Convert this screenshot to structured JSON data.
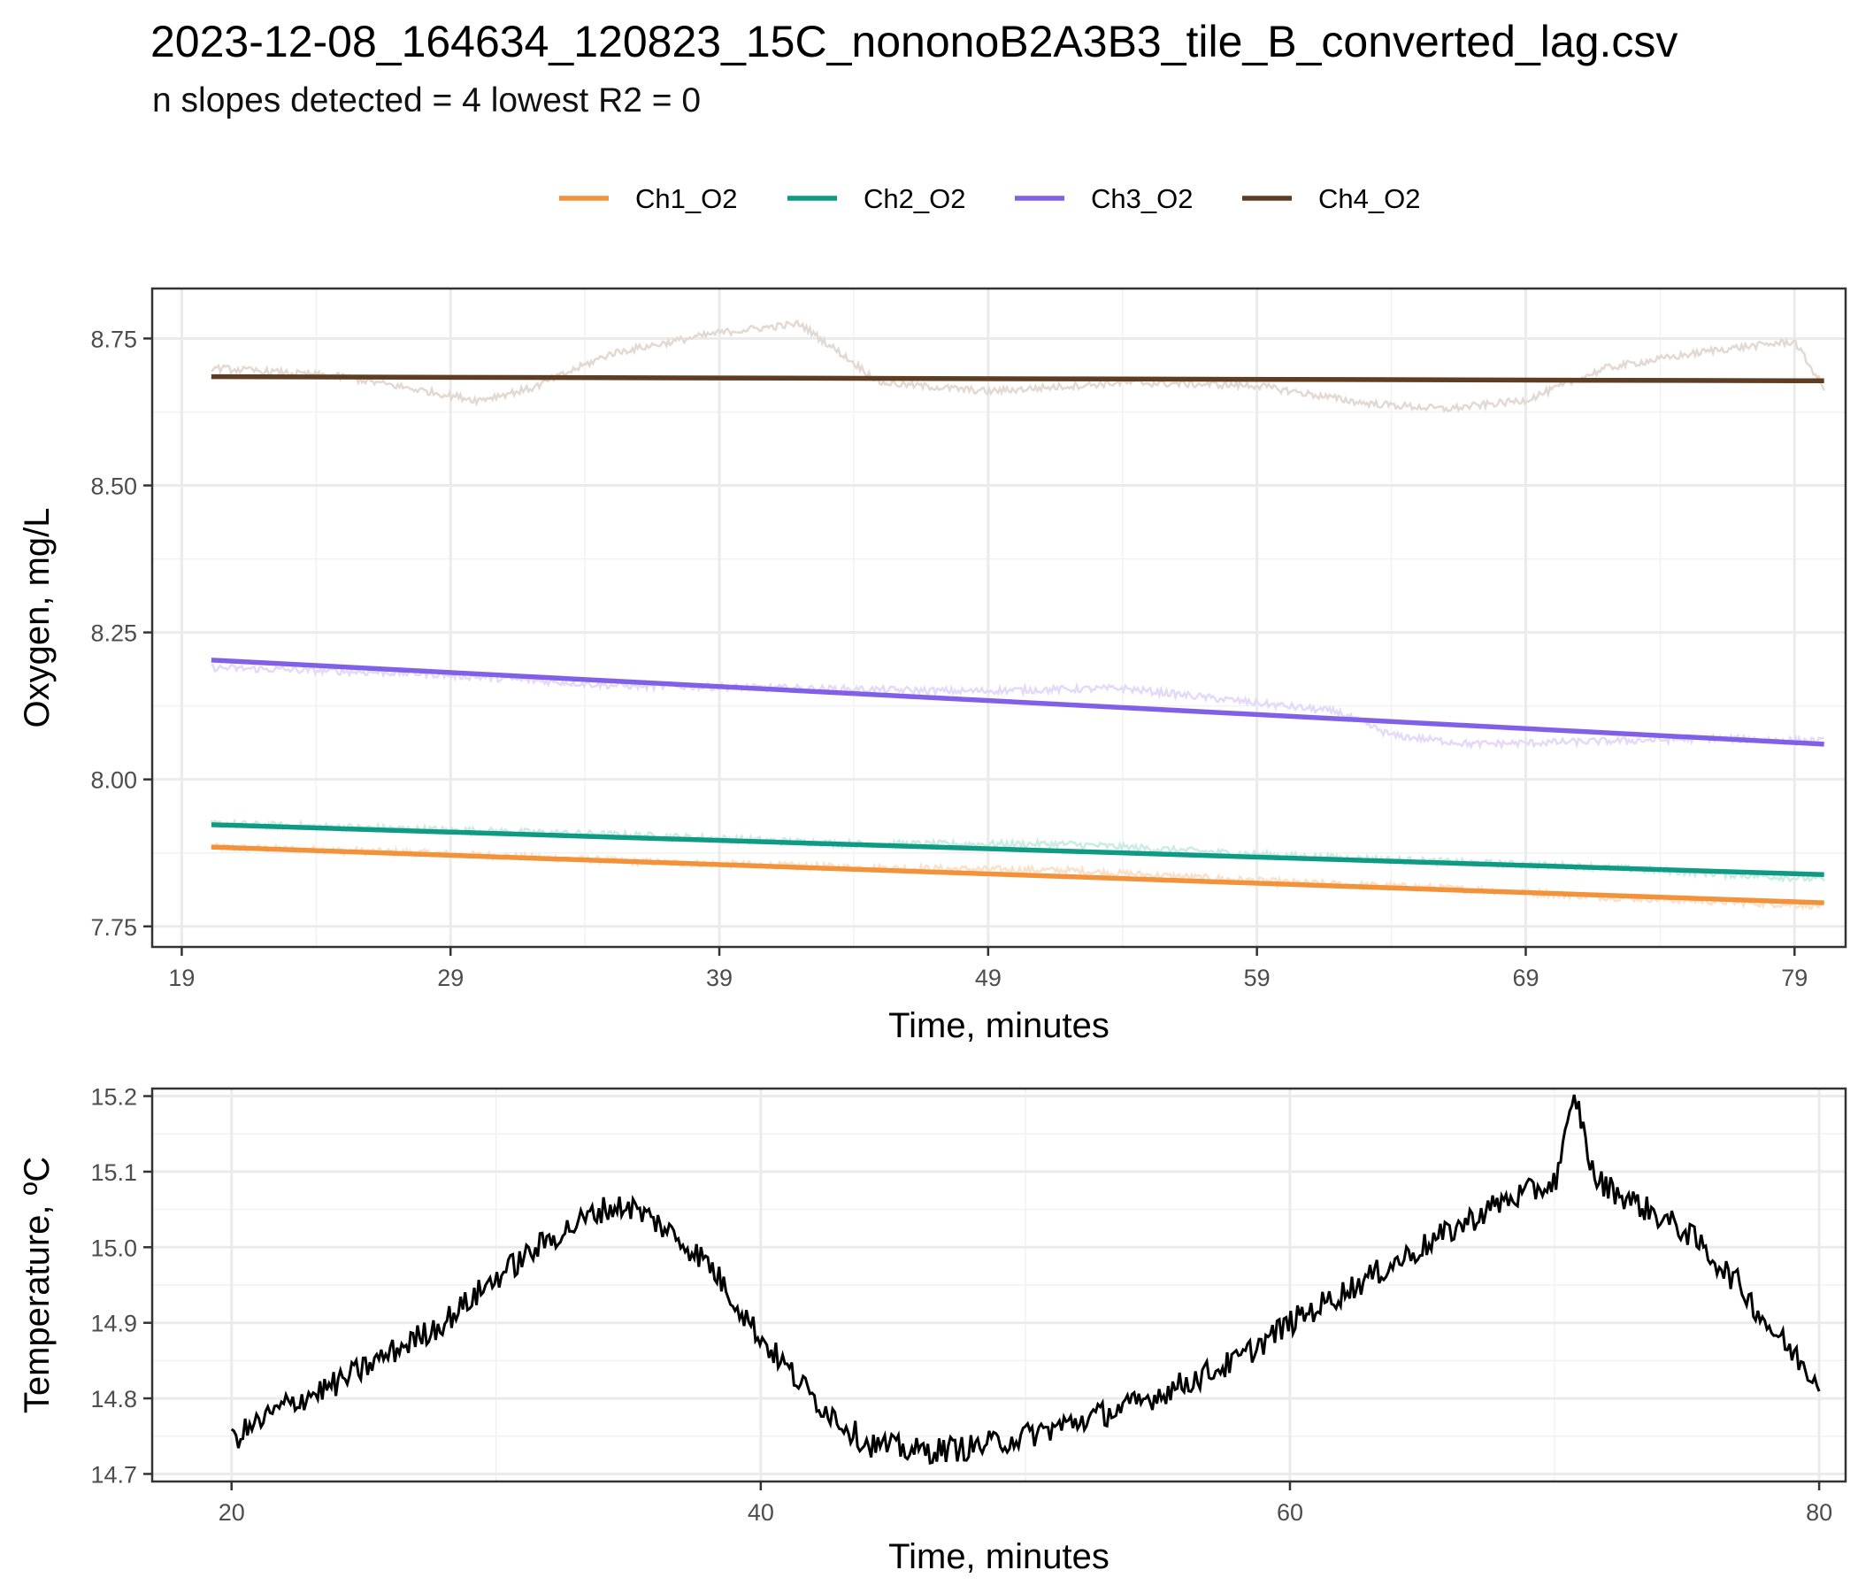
{
  "title": "2023-12-08_164634_120823_15C_nononoB2A3B3_tile_B_converted_lag.csv",
  "subtitle": "n slopes detected = 4  lowest R2 = 0",
  "chart_data": [
    {
      "type": "line",
      "xlabel": "Time, minutes",
      "ylabel": "Oxygen, mg/L",
      "xlim": [
        17.9,
        80.9
      ],
      "ylim": [
        7.715,
        8.835
      ],
      "xticks": [
        19,
        29,
        39,
        49,
        59,
        69,
        79
      ],
      "yticks": [
        7.75,
        8.0,
        8.25,
        8.5,
        8.75
      ],
      "ytick_labels": [
        "7.75",
        "8.00",
        "8.25",
        "8.50",
        "8.75"
      ],
      "grid": true,
      "legend": "top",
      "series": [
        {
          "name": "Ch1_O2",
          "color": "#F2923A",
          "raw_color": "#FBE0C8",
          "fit": [
            [
              20.1,
              7.885
            ],
            [
              80.1,
              7.79
            ]
          ],
          "raw": [
            [
              20.1,
              7.885
            ],
            [
              28,
              7.875
            ],
            [
              36,
              7.86
            ],
            [
              44,
              7.85
            ],
            [
              52,
              7.845
            ],
            [
              60,
              7.825
            ],
            [
              66,
              7.815
            ],
            [
              72,
              7.8
            ],
            [
              80.1,
              7.785
            ]
          ]
        },
        {
          "name": "Ch2_O2",
          "color": "#0E9A83",
          "raw_color": "#C9ECE3",
          "fit": [
            [
              20.1,
              7.923
            ],
            [
              80.1,
              7.838
            ]
          ],
          "raw": [
            [
              20.1,
              7.925
            ],
            [
              28,
              7.915
            ],
            [
              36,
              7.905
            ],
            [
              44,
              7.89
            ],
            [
              52,
              7.89
            ],
            [
              60,
              7.87
            ],
            [
              66,
              7.86
            ],
            [
              72,
              7.85
            ],
            [
              80.1,
              7.83
            ]
          ]
        },
        {
          "name": "Ch3_O2",
          "color": "#8160E8",
          "raw_color": "#E3DAFA",
          "fit": [
            [
              20.1,
              8.203
            ],
            [
              80.1,
              8.06
            ]
          ],
          "raw": [
            [
              20.1,
              8.19
            ],
            [
              28,
              8.18
            ],
            [
              35,
              8.16
            ],
            [
              42,
              8.155
            ],
            [
              48,
              8.15
            ],
            [
              54,
              8.155
            ],
            [
              59,
              8.13
            ],
            [
              62,
              8.115
            ],
            [
              64,
              8.075
            ],
            [
              67,
              8.06
            ],
            [
              72,
              8.065
            ],
            [
              76,
              8.07
            ],
            [
              80.1,
              8.065
            ]
          ]
        },
        {
          "name": "Ch4_O2",
          "color": "#5E3D22",
          "raw_color": "#E3D9D3",
          "fit": [
            [
              20.1,
              8.685
            ],
            [
              80.1,
              8.678
            ]
          ],
          "raw": [
            [
              20.1,
              8.7
            ],
            [
              25,
              8.685
            ],
            [
              30,
              8.645
            ],
            [
              32,
              8.665
            ],
            [
              35,
              8.725
            ],
            [
              39,
              8.76
            ],
            [
              42,
              8.775
            ],
            [
              45,
              8.675
            ],
            [
              49,
              8.66
            ],
            [
              54,
              8.675
            ],
            [
              59,
              8.67
            ],
            [
              63,
              8.64
            ],
            [
              66,
              8.63
            ],
            [
              69,
              8.645
            ],
            [
              72,
              8.7
            ],
            [
              76,
              8.73
            ],
            [
              79,
              8.745
            ],
            [
              80.1,
              8.665
            ]
          ]
        }
      ]
    },
    {
      "type": "line",
      "xlabel": "Time, minutes",
      "ylabel": "Temperature, ºC",
      "xlim": [
        17.0,
        81.0
      ],
      "ylim": [
        14.69,
        15.21
      ],
      "xticks": [
        20,
        40,
        60,
        80
      ],
      "yticks": [
        14.7,
        14.8,
        14.9,
        15.0,
        15.1,
        15.2
      ],
      "ytick_labels": [
        "14.7",
        "14.8",
        "14.9",
        "15.0",
        "15.1",
        "15.2"
      ],
      "grid": true,
      "series": [
        {
          "color": "#000000",
          "values": [
            [
              20.0,
              14.745
            ],
            [
              22.0,
              14.79
            ],
            [
              24.0,
              14.82
            ],
            [
              26.0,
              14.86
            ],
            [
              28.0,
              14.9
            ],
            [
              30.0,
              14.96
            ],
            [
              32.0,
              15.01
            ],
            [
              34.0,
              15.05
            ],
            [
              35.0,
              15.055
            ],
            [
              36.0,
              15.035
            ],
            [
              38.0,
              14.98
            ],
            [
              40.0,
              14.88
            ],
            [
              42.0,
              14.8
            ],
            [
              44.0,
              14.74
            ],
            [
              46.0,
              14.73
            ],
            [
              48.0,
              14.735
            ],
            [
              50.0,
              14.75
            ],
            [
              52.0,
              14.77
            ],
            [
              54.0,
              14.79
            ],
            [
              56.0,
              14.82
            ],
            [
              58.0,
              14.85
            ],
            [
              60.0,
              14.9
            ],
            [
              62.0,
              14.94
            ],
            [
              64.0,
              14.98
            ],
            [
              66.0,
              15.02
            ],
            [
              68.0,
              15.06
            ],
            [
              70.0,
              15.085
            ],
            [
              70.8,
              15.2
            ],
            [
              71.5,
              15.09
            ],
            [
              73.0,
              15.06
            ],
            [
              75.0,
              15.02
            ],
            [
              77.0,
              14.95
            ],
            [
              78.0,
              14.9
            ],
            [
              79.0,
              14.86
            ],
            [
              80.0,
              14.82
            ]
          ]
        }
      ]
    }
  ]
}
